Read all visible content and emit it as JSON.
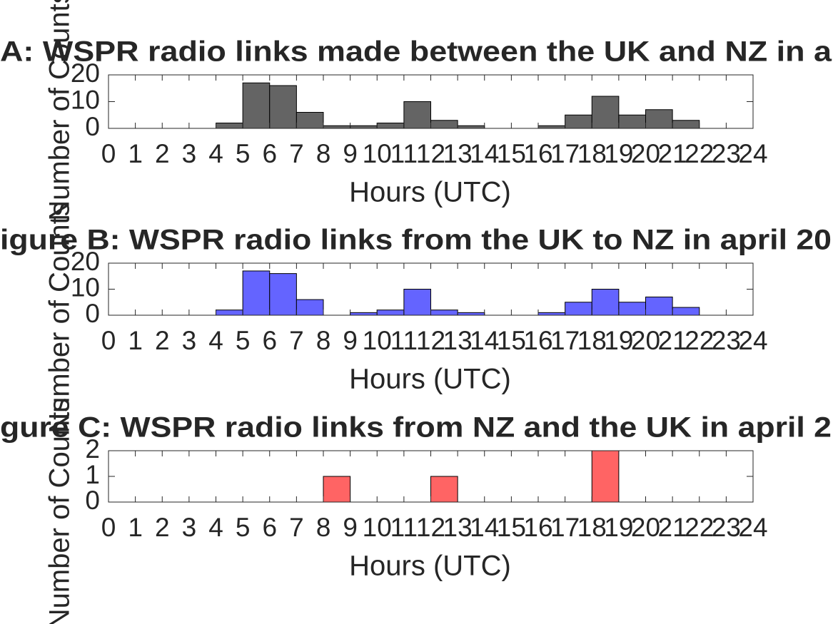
{
  "chart_data": [
    {
      "type": "histogram",
      "title": "A: WSPR radio links made between the UK and NZ in a",
      "x_label": "Hours (UTC)",
      "y_label": "Number of Counts",
      "color": "#646464",
      "bins": [
        0,
        1,
        2,
        3,
        4,
        5,
        6,
        7,
        8,
        9,
        10,
        11,
        12,
        13,
        14,
        15,
        16,
        17,
        18,
        19,
        20,
        21,
        22,
        23,
        24
      ],
      "values": [
        0,
        0,
        0,
        0,
        2,
        17,
        16,
        6,
        1,
        1,
        2,
        10,
        3,
        1,
        0,
        0,
        1,
        5,
        12,
        5,
        7,
        3,
        0,
        0
      ],
      "xlim": [
        0,
        24
      ],
      "xticks": [
        0,
        1,
        2,
        3,
        4,
        5,
        6,
        7,
        8,
        9,
        10,
        11,
        12,
        13,
        14,
        15,
        16,
        17,
        18,
        19,
        20,
        21,
        22,
        23,
        24
      ],
      "ylim": [
        0,
        20
      ],
      "yticks": [
        0,
        10,
        20
      ]
    },
    {
      "type": "histogram",
      "title": "igure B: WSPR radio links from the UK to NZ in april 20",
      "x_label": "Hours (UTC)",
      "y_label": "Number of Counts",
      "color": "#6464ff",
      "bins": [
        0,
        1,
        2,
        3,
        4,
        5,
        6,
        7,
        8,
        9,
        10,
        11,
        12,
        13,
        14,
        15,
        16,
        17,
        18,
        19,
        20,
        21,
        22,
        23,
        24
      ],
      "values": [
        0,
        0,
        0,
        0,
        2,
        17,
        16,
        6,
        0,
        1,
        2,
        10,
        2,
        1,
        0,
        0,
        1,
        5,
        10,
        5,
        7,
        3,
        0,
        0
      ],
      "xlim": [
        0,
        24
      ],
      "xticks": [
        0,
        1,
        2,
        3,
        4,
        5,
        6,
        7,
        8,
        9,
        10,
        11,
        12,
        13,
        14,
        15,
        16,
        17,
        18,
        19,
        20,
        21,
        22,
        23,
        24
      ],
      "ylim": [
        0,
        20
      ],
      "yticks": [
        0,
        10,
        20
      ]
    },
    {
      "type": "histogram",
      "title": "gure C: WSPR radio links from NZ and the UK in april 2",
      "x_label": "Hours (UTC)",
      "y_label": "Number of Counts",
      "color": "#ff6464",
      "bins": [
        0,
        1,
        2,
        3,
        4,
        5,
        6,
        7,
        8,
        9,
        10,
        11,
        12,
        13,
        14,
        15,
        16,
        17,
        18,
        19,
        20,
        21,
        22,
        23,
        24
      ],
      "values": [
        0,
        0,
        0,
        0,
        0,
        0,
        0,
        0,
        1,
        0,
        0,
        0,
        1,
        0,
        0,
        0,
        0,
        0,
        2,
        0,
        0,
        0,
        0,
        0
      ],
      "xlim": [
        0,
        24
      ],
      "xticks": [
        0,
        1,
        2,
        3,
        4,
        5,
        6,
        7,
        8,
        9,
        10,
        11,
        12,
        13,
        14,
        15,
        16,
        17,
        18,
        19,
        20,
        21,
        22,
        23,
        24
      ],
      "ylim": [
        0,
        2
      ],
      "yticks": [
        0,
        1,
        2
      ]
    }
  ]
}
